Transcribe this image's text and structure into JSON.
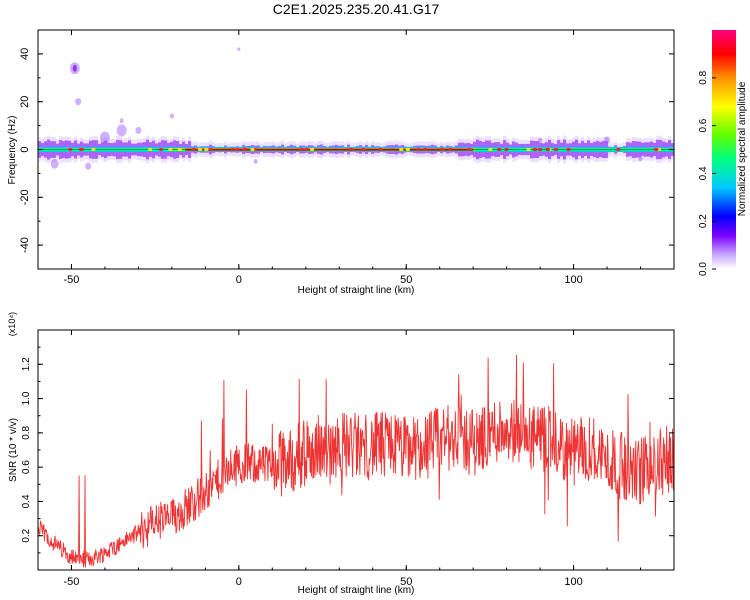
{
  "figure": {
    "title": "C2E1.2025.235.20.41.G17"
  },
  "chart_data": [
    {
      "type": "heatmap",
      "xlabel": "Height of straight line (km)",
      "ylabel": "Frequency (Hz)",
      "xlim": [
        -60,
        130
      ],
      "ylim": [
        -50,
        50
      ],
      "xticks": [
        -50,
        0,
        50,
        100
      ],
      "yticks": [
        -40,
        -20,
        0,
        20,
        40
      ],
      "ridge_frequency_hz": 0,
      "colorbar": {
        "label": "Normalized spectral amplitude",
        "range": [
          0,
          1
        ],
        "ticks": [
          "0.0",
          "0.2",
          "0.4",
          "0.6",
          "0.8"
        ],
        "colors": [
          "#ffffff",
          "#c8a8ff",
          "#7a00ff",
          "#0000ff",
          "#00c8ff",
          "#00ff80",
          "#60ff00",
          "#ffff00",
          "#ff9000",
          "#ff0000",
          "#ff0080"
        ]
      },
      "grid": false
    },
    {
      "type": "line",
      "xlabel": "Height of straight line (km)",
      "ylabel": "SNR (10 * v/v)",
      "y_multiplier": "(x10⁴)",
      "xlim": [
        -60,
        130
      ],
      "ylim": [
        0,
        1.4
      ],
      "xticks": [
        -50,
        0,
        50,
        100
      ],
      "yticks": [
        "0.2",
        "0.4",
        "0.6",
        "0.8",
        "1.0",
        "1.2"
      ],
      "line_color": "#ee3333",
      "series": [
        {
          "x": [
            -60,
            -55,
            -50,
            -45,
            -40,
            -35,
            -30,
            -25,
            -20,
            -15,
            -10,
            -5,
            0,
            5,
            10,
            15,
            20,
            25,
            30,
            35,
            40,
            45,
            50,
            55,
            60,
            65,
            70,
            75,
            80,
            85,
            90,
            95,
            100,
            105,
            110,
            115,
            120,
            125,
            130
          ],
          "values": [
            0.25,
            0.15,
            0.08,
            0.06,
            0.1,
            0.16,
            0.22,
            0.28,
            0.3,
            0.38,
            0.45,
            0.55,
            0.62,
            0.62,
            0.6,
            0.64,
            0.68,
            0.72,
            0.74,
            0.72,
            0.72,
            0.74,
            0.7,
            0.72,
            0.76,
            0.78,
            0.74,
            0.8,
            0.84,
            0.78,
            0.76,
            0.72,
            0.68,
            0.72,
            0.64,
            0.6,
            0.58,
            0.62,
            0.66
          ]
        }
      ],
      "grid": false
    }
  ]
}
